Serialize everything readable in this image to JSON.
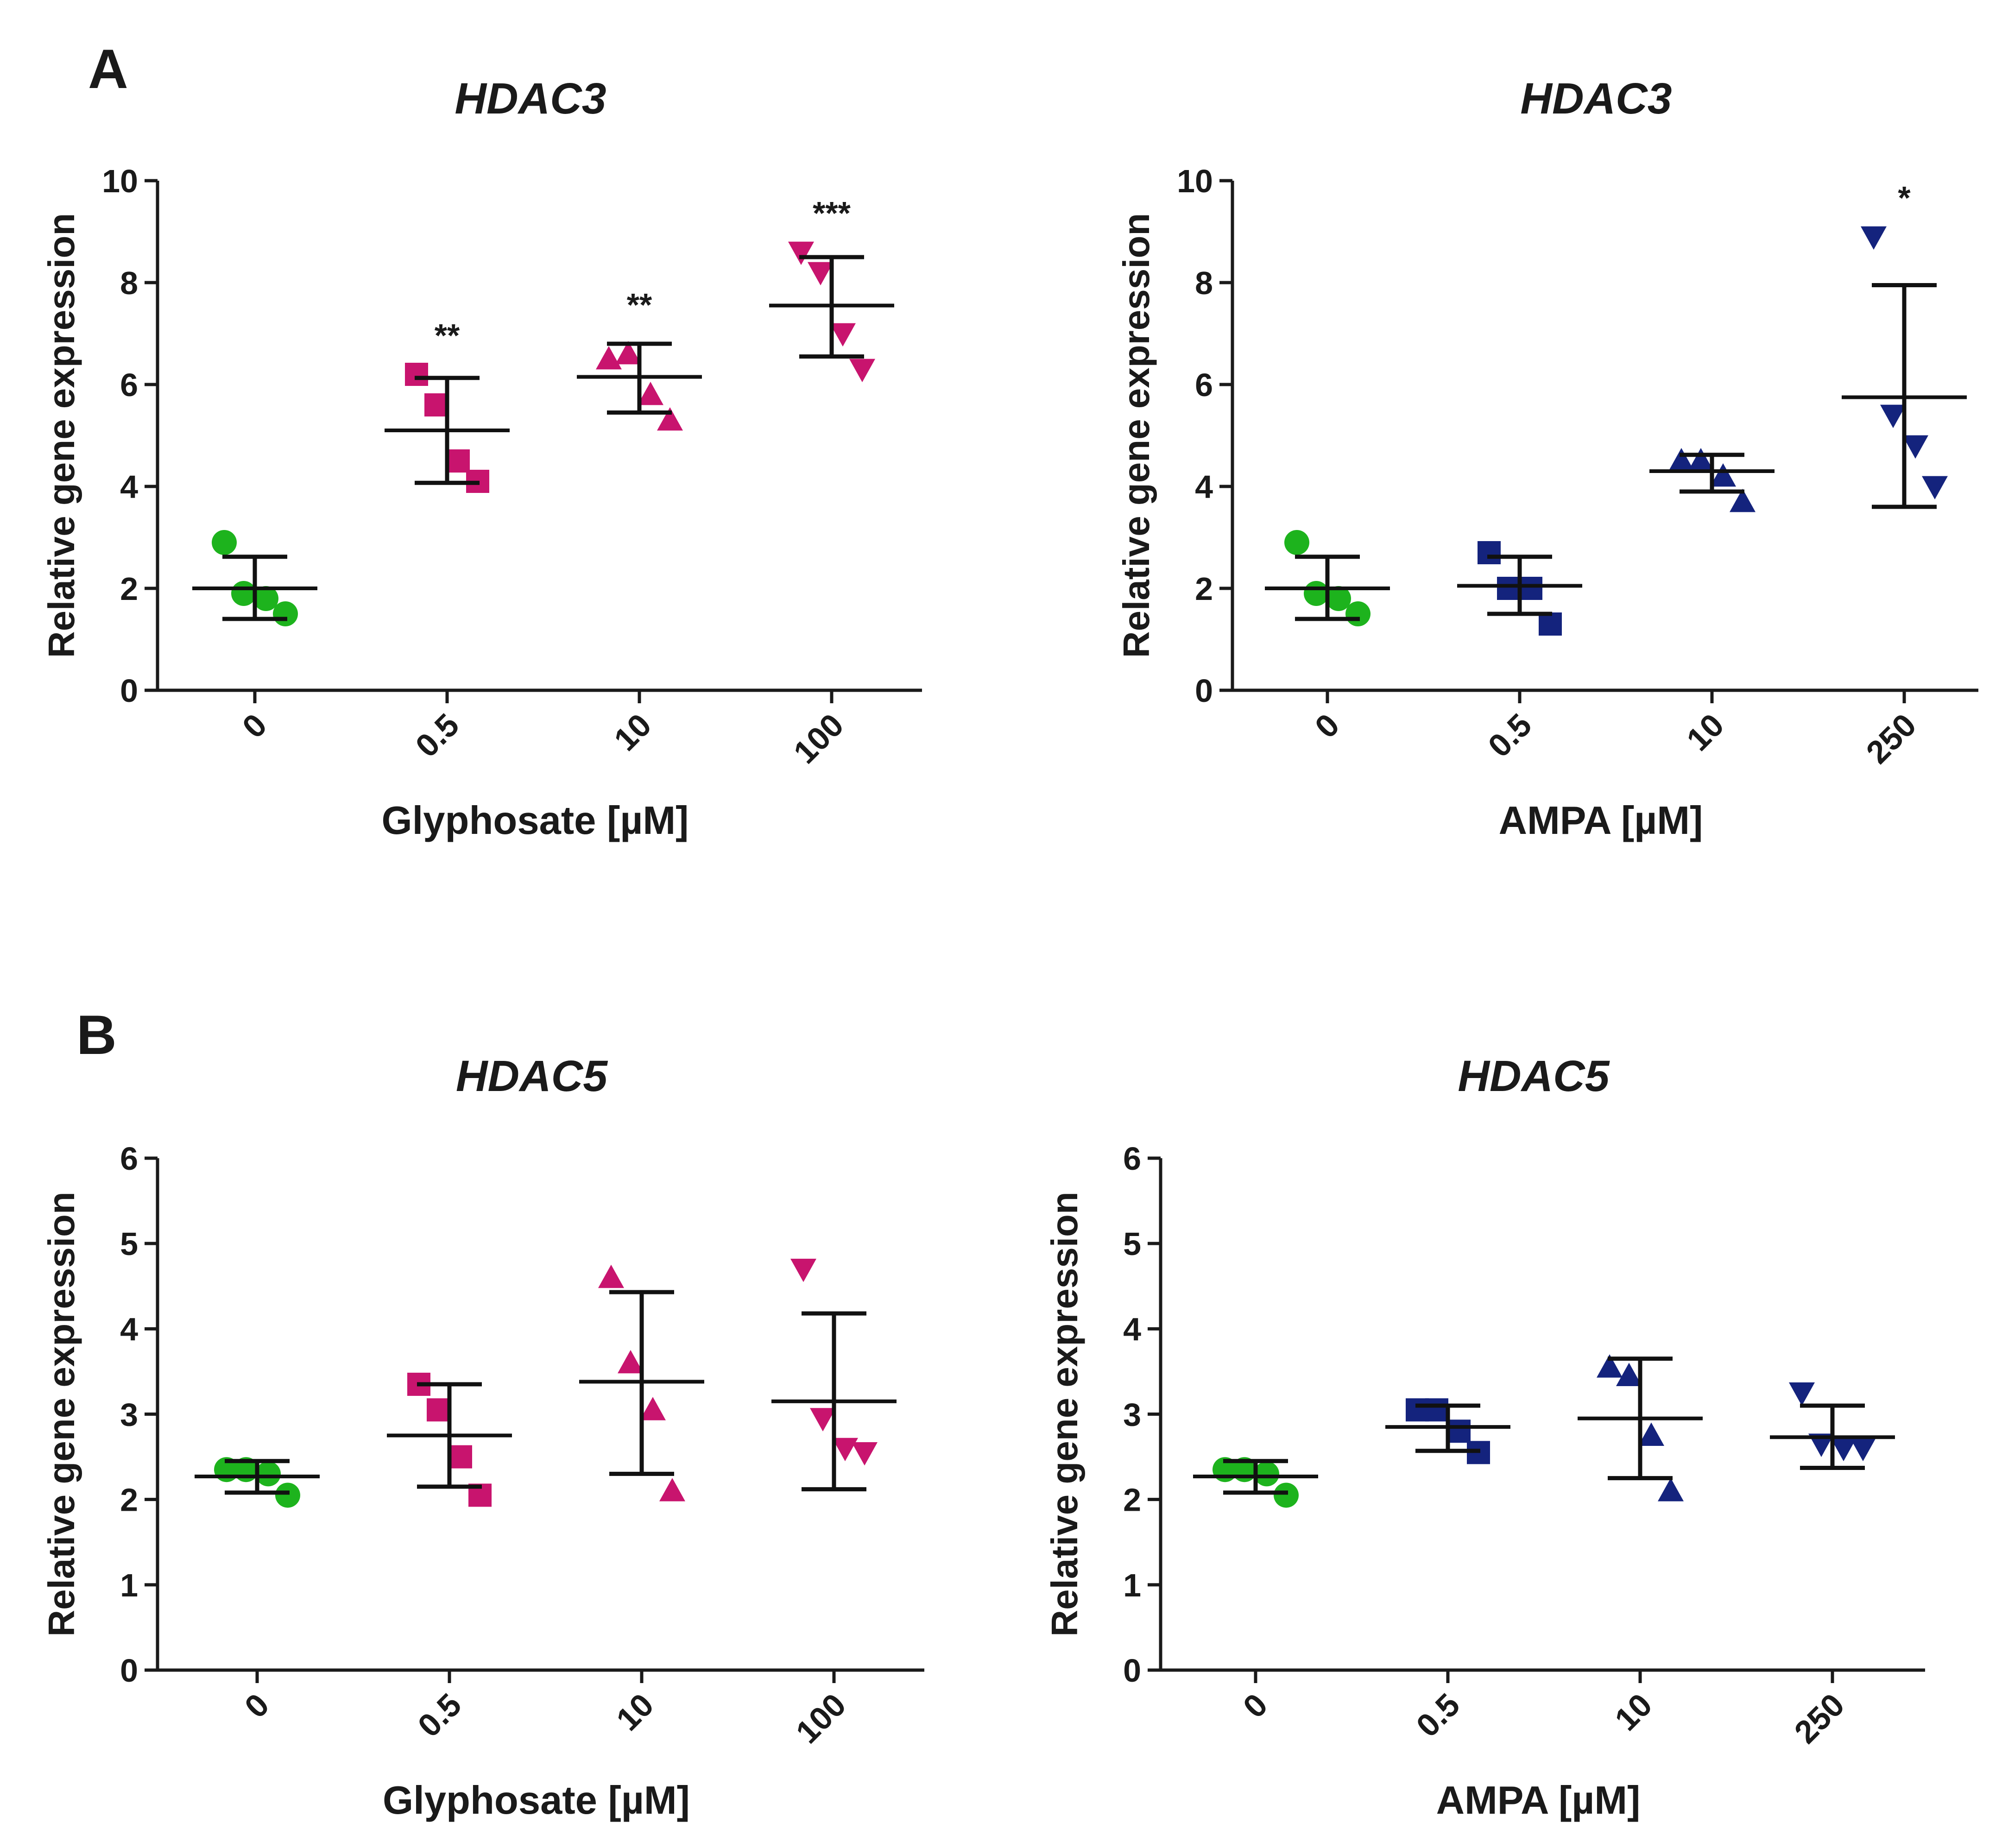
{
  "panel_labels": [
    "A",
    "B"
  ],
  "chart_data": [
    {
      "type": "scatter",
      "panel": "A",
      "title": "HDAC3",
      "xlabel": "Glyphosate [µM]",
      "ylabel": "Relative gene expression",
      "categories": [
        "0",
        "0.5",
        "10",
        "100"
      ],
      "ylim": [
        0,
        10
      ],
      "yticks": [
        "0",
        "2",
        "4",
        "6",
        "8",
        "10"
      ],
      "grid": false,
      "legend": "none",
      "groups": [
        {
          "category": "0",
          "marker": "circle",
          "color": "#1db31d",
          "points": [
            2.9,
            1.9,
            1.8,
            1.5
          ],
          "mean": 2.0,
          "error_low": 1.4,
          "error_high": 2.62,
          "significance": ""
        },
        {
          "category": "0.5",
          "marker": "square",
          "color": "#c8146e",
          "points": [
            6.2,
            5.6,
            4.5,
            4.1
          ],
          "mean": 5.1,
          "error_low": 4.07,
          "error_high": 6.13,
          "significance": "**"
        },
        {
          "category": "10",
          "marker": "triangle-up",
          "color": "#c8146e",
          "points": [
            6.5,
            6.6,
            5.8,
            5.3
          ],
          "mean": 6.15,
          "error_low": 5.45,
          "error_high": 6.8,
          "significance": "**"
        },
        {
          "category": "100",
          "marker": "triangle-down",
          "color": "#c8146e",
          "points": [
            8.6,
            8.2,
            7.0,
            6.3
          ],
          "mean": 7.55,
          "error_low": 6.55,
          "error_high": 8.5,
          "significance": "***"
        }
      ]
    },
    {
      "type": "scatter",
      "panel": "A",
      "title": "HDAC3",
      "xlabel": "AMPA [µM]",
      "ylabel": "Relative gene expression",
      "categories": [
        "0",
        "0.5",
        "10",
        "250"
      ],
      "ylim": [
        0,
        10
      ],
      "yticks": [
        "0",
        "2",
        "4",
        "6",
        "8",
        "10"
      ],
      "grid": false,
      "legend": "none",
      "groups": [
        {
          "category": "0",
          "marker": "circle",
          "color": "#1db31d",
          "points": [
            2.9,
            1.9,
            1.8,
            1.5
          ],
          "mean": 2.0,
          "error_low": 1.4,
          "error_high": 2.62,
          "significance": ""
        },
        {
          "category": "0.5",
          "marker": "square",
          "color": "#14237d",
          "points": [
            2.7,
            2.0,
            2.0,
            1.3
          ],
          "mean": 2.05,
          "error_low": 1.5,
          "error_high": 2.62,
          "significance": ""
        },
        {
          "category": "10",
          "marker": "triangle-up",
          "color": "#14237d",
          "points": [
            4.5,
            4.5,
            4.2,
            3.7
          ],
          "mean": 4.3,
          "error_low": 3.9,
          "error_high": 4.62,
          "significance": ""
        },
        {
          "category": "250",
          "marker": "triangle-down",
          "color": "#14237d",
          "points": [
            8.9,
            5.4,
            4.8,
            4.0
          ],
          "mean": 5.75,
          "error_low": 3.6,
          "error_high": 7.95,
          "significance": "*"
        }
      ]
    },
    {
      "type": "scatter",
      "panel": "B",
      "title": "HDAC5",
      "xlabel": "Glyphosate [µM]",
      "ylabel": "Relative gene expression",
      "categories": [
        "0",
        "0.5",
        "10",
        "100"
      ],
      "ylim": [
        0,
        6
      ],
      "yticks": [
        "0",
        "1",
        "2",
        "3",
        "4",
        "5",
        "6"
      ],
      "grid": false,
      "legend": "none",
      "groups": [
        {
          "category": "0",
          "marker": "circle",
          "color": "#1db31d",
          "points": [
            2.35,
            2.35,
            2.3,
            2.05
          ],
          "mean": 2.27,
          "error_low": 2.08,
          "error_high": 2.45,
          "significance": ""
        },
        {
          "category": "0.5",
          "marker": "square",
          "color": "#c8146e",
          "points": [
            3.35,
            3.05,
            2.5,
            2.05
          ],
          "mean": 2.75,
          "error_low": 2.15,
          "error_high": 3.35,
          "significance": ""
        },
        {
          "category": "10",
          "marker": "triangle-up",
          "color": "#c8146e",
          "points": [
            4.6,
            3.6,
            3.05,
            2.1
          ],
          "mean": 3.38,
          "error_low": 2.3,
          "error_high": 4.43,
          "significance": ""
        },
        {
          "category": "100",
          "marker": "triangle-down",
          "color": "#c8146e",
          "points": [
            4.7,
            2.95,
            2.6,
            2.55
          ],
          "mean": 3.15,
          "error_low": 2.12,
          "error_high": 4.18,
          "significance": ""
        }
      ]
    },
    {
      "type": "scatter",
      "panel": "B",
      "title": "HDAC5",
      "xlabel": "AMPA [µM]",
      "ylabel": "Relative gene expression",
      "categories": [
        "0",
        "0.5",
        "10",
        "250"
      ],
      "ylim": [
        0,
        6
      ],
      "yticks": [
        "0",
        "1",
        "2",
        "3",
        "4",
        "5",
        "6"
      ],
      "grid": false,
      "legend": "none",
      "groups": [
        {
          "category": "0",
          "marker": "circle",
          "color": "#1db31d",
          "points": [
            2.35,
            2.35,
            2.3,
            2.05
          ],
          "mean": 2.27,
          "error_low": 2.08,
          "error_high": 2.45,
          "significance": ""
        },
        {
          "category": "0.5",
          "marker": "square",
          "color": "#14237d",
          "points": [
            3.05,
            3.05,
            2.8,
            2.55
          ],
          "mean": 2.85,
          "error_low": 2.57,
          "error_high": 3.1,
          "significance": ""
        },
        {
          "category": "10",
          "marker": "triangle-up",
          "color": "#14237d",
          "points": [
            3.55,
            3.45,
            2.75,
            2.1
          ],
          "mean": 2.95,
          "error_low": 2.25,
          "error_high": 3.65,
          "significance": ""
        },
        {
          "category": "250",
          "marker": "triangle-down",
          "color": "#14237d",
          "points": [
            3.25,
            2.65,
            2.6,
            2.6
          ],
          "mean": 2.73,
          "error_low": 2.37,
          "error_high": 3.1,
          "significance": ""
        }
      ]
    }
  ]
}
